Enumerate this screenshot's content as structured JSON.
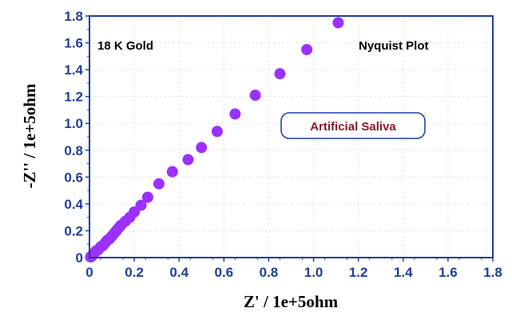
{
  "chart_data": {
    "type": "scatter",
    "xlabel": "Z' / 1e+5ohm",
    "ylabel": "-Z'' / 1e+5ohm",
    "xlim": [
      0,
      1.8
    ],
    "ylim": [
      0,
      1.8
    ],
    "xticks": [
      "0",
      "0.2",
      "0.4",
      "0.6",
      "0.8",
      "1.0",
      "1.2",
      "1.4",
      "1.6",
      "1.8"
    ],
    "yticks": [
      "0",
      "0.2",
      "0.4",
      "0.6",
      "0.8",
      "1.0",
      "1.2",
      "1.4",
      "1.6",
      "1.8"
    ],
    "grid": true,
    "annotations": {
      "sample": "18 K Gold",
      "plot_name": "Nyquist Plot",
      "medium": "Artificial Saliva"
    },
    "colors": {
      "marker": "#9b30ff",
      "axis": "#1f3f9a",
      "grid": "#c9d3e6",
      "medium_text": "#8b1a2b",
      "medium_box": "#1f3fb0"
    },
    "series": [
      {
        "x": [
          0.005,
          0.01,
          0.015,
          0.02,
          0.025,
          0.03,
          0.04,
          0.05,
          0.06,
          0.07,
          0.08,
          0.09,
          0.1,
          0.11,
          0.12,
          0.13,
          0.14,
          0.16,
          0.18,
          0.2,
          0.23,
          0.26,
          0.31,
          0.37,
          0.44,
          0.5,
          0.57,
          0.65,
          0.74,
          0.85,
          0.97,
          1.11
        ],
        "y": [
          0.005,
          0.01,
          0.02,
          0.03,
          0.04,
          0.05,
          0.06,
          0.08,
          0.09,
          0.11,
          0.13,
          0.14,
          0.16,
          0.18,
          0.2,
          0.22,
          0.24,
          0.27,
          0.3,
          0.34,
          0.39,
          0.45,
          0.55,
          0.64,
          0.73,
          0.82,
          0.94,
          1.07,
          1.21,
          1.37,
          1.55,
          1.75
        ]
      }
    ]
  }
}
